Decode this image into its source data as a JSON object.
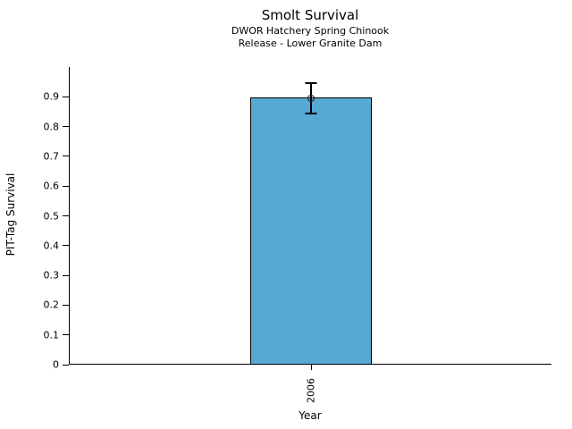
{
  "chart_data": {
    "type": "bar",
    "title": "Smolt Survival",
    "subtitle_lines": [
      "DWOR Hatchery Spring Chinook",
      "Release - Lower Granite Dam"
    ],
    "xlabel": "Year",
    "ylabel": "PIT-Tag Survival",
    "categories": [
      "2006"
    ],
    "values": [
      0.895
    ],
    "error_low": [
      0.845
    ],
    "error_high": [
      0.945
    ],
    "ylim": [
      0,
      1.0
    ],
    "yticks": [
      0,
      0.1,
      0.2,
      0.3,
      0.4,
      0.5,
      0.6,
      0.7,
      0.8,
      0.9
    ],
    "ytick_labels": [
      "0",
      "0.1",
      "0.2",
      "0.3",
      "0.4",
      "0.5",
      "0.6",
      "0.7",
      "0.8",
      "0.9"
    ],
    "grid": "off",
    "legend": "none",
    "bar_color": "#57A9D4",
    "bar_edge_color": "#000000",
    "error_color": "#000000",
    "marker": "open-circle",
    "background": "#FFFFFF"
  }
}
